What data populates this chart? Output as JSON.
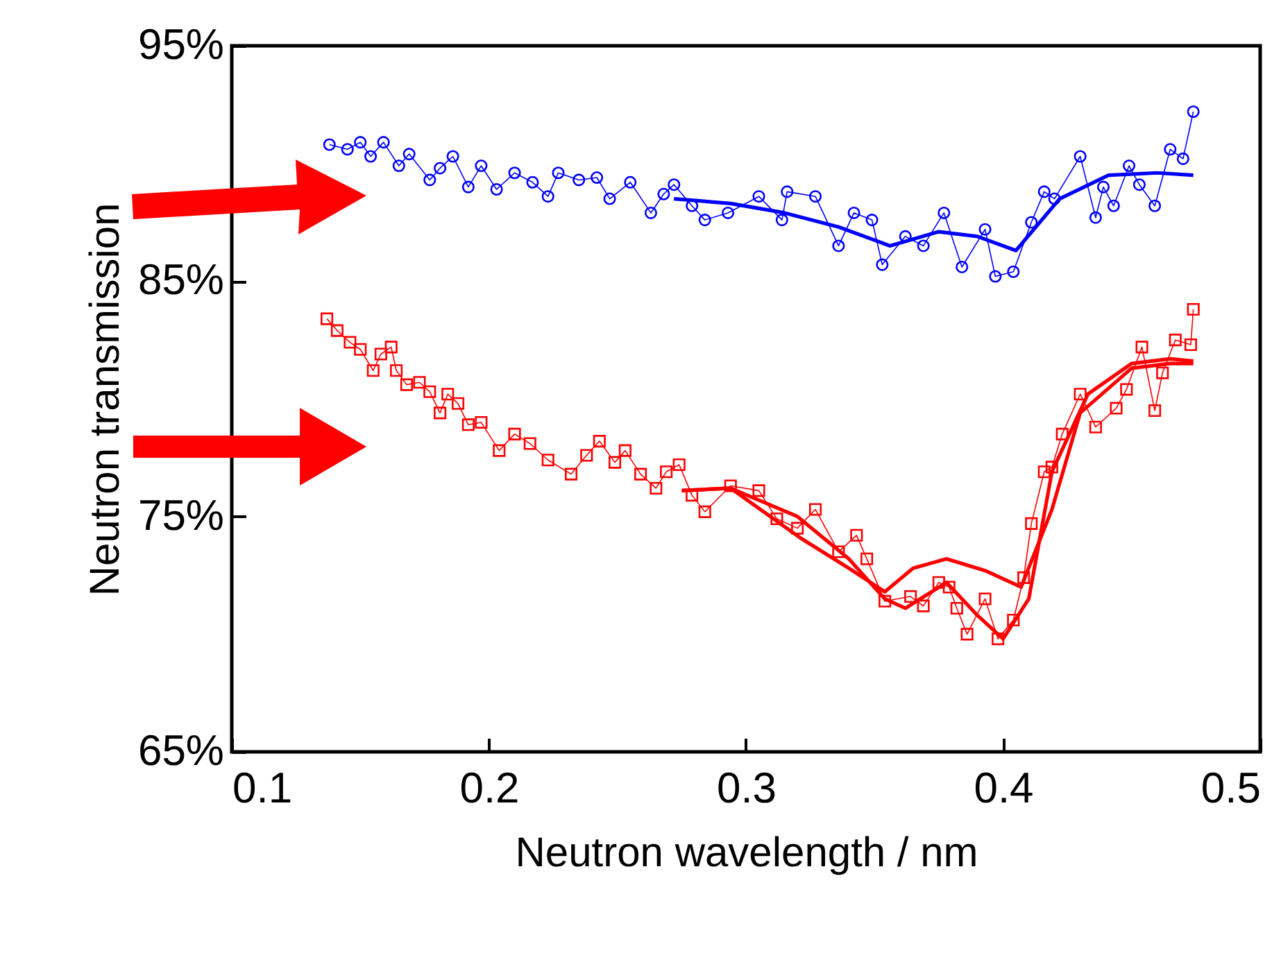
{
  "chart_data": {
    "type": "line",
    "xlabel": "Neutron wavelength / nm",
    "ylabel": "Neutron transmission",
    "xlim": [
      0.1,
      0.5
    ],
    "ylim": [
      65,
      95
    ],
    "xticks": [
      0.1,
      0.2,
      0.3,
      0.4,
      0.5
    ],
    "yticks": [
      {
        "value": 65,
        "label": "65%"
      },
      {
        "value": 75,
        "label": "75%"
      },
      {
        "value": 85,
        "label": "85%"
      },
      {
        "value": 95,
        "label": "95%"
      }
    ],
    "grid": false,
    "series": [
      {
        "marker": "circle",
        "color": "#0000ff",
        "x": [
          0.138,
          0.145,
          0.15,
          0.154,
          0.159,
          0.165,
          0.169,
          0.177,
          0.181,
          0.186,
          0.192,
          0.197,
          0.203,
          0.21,
          0.217,
          0.223,
          0.227,
          0.235,
          0.242,
          0.247,
          0.255,
          0.263,
          0.268,
          0.272,
          0.279,
          0.284,
          0.293,
          0.305,
          0.314,
          0.316,
          0.327,
          0.336,
          0.342,
          0.349,
          0.353,
          0.362,
          0.369,
          0.377,
          0.384,
          0.393,
          0.397,
          0.404,
          0.411,
          0.416,
          0.42,
          0.43,
          0.436,
          0.439,
          0.443,
          0.449,
          0.453,
          0.459,
          0.465,
          0.47,
          0.474
        ],
        "values": [
          90.8,
          90.6,
          90.9,
          90.3,
          90.9,
          89.9,
          90.4,
          89.3,
          89.8,
          90.3,
          89.0,
          89.9,
          88.9,
          89.6,
          89.2,
          88.6,
          89.6,
          89.3,
          89.4,
          88.5,
          89.2,
          87.9,
          88.7,
          89.1,
          88.2,
          87.6,
          87.9,
          88.6,
          87.6,
          88.8,
          88.6,
          86.5,
          87.9,
          87.6,
          85.7,
          86.9,
          86.5,
          87.9,
          85.6,
          87.2,
          85.2,
          85.4,
          87.5,
          88.8,
          88.5,
          90.3,
          87.7,
          89.0,
          88.2,
          89.9,
          89.1,
          88.2,
          90.6,
          90.2,
          92.2
        ]
      },
      {
        "marker": "none",
        "color": "#0000ff",
        "x": [
          0.272,
          0.294,
          0.315,
          0.336,
          0.356,
          0.375,
          0.39,
          0.405,
          0.422,
          0.441,
          0.46,
          0.474
        ],
        "values": [
          88.5,
          88.3,
          87.9,
          87.3,
          86.5,
          87.1,
          86.9,
          86.3,
          88.5,
          89.5,
          89.6,
          89.5
        ]
      },
      {
        "marker": "square",
        "color": "#ff0000",
        "x": [
          0.137,
          0.141,
          0.146,
          0.15,
          0.155,
          0.158,
          0.162,
          0.164,
          0.168,
          0.173,
          0.177,
          0.181,
          0.184,
          0.188,
          0.192,
          0.197,
          0.204,
          0.21,
          0.216,
          0.223,
          0.232,
          0.238,
          0.243,
          0.249,
          0.253,
          0.259,
          0.265,
          0.269,
          0.274,
          0.279,
          0.284,
          0.294,
          0.305,
          0.312,
          0.32,
          0.327,
          0.336,
          0.343,
          0.347,
          0.354,
          0.364,
          0.369,
          0.375,
          0.379,
          0.382,
          0.386,
          0.393,
          0.398,
          0.404,
          0.408,
          0.411,
          0.416,
          0.419,
          0.423,
          0.43,
          0.436,
          0.444,
          0.448,
          0.454,
          0.459,
          0.462,
          0.467,
          0.473,
          0.474
        ],
        "values": [
          83.4,
          82.9,
          82.4,
          82.1,
          81.2,
          81.9,
          82.2,
          81.2,
          80.6,
          80.7,
          80.3,
          79.4,
          80.2,
          79.8,
          78.9,
          79.0,
          77.8,
          78.5,
          78.1,
          77.4,
          76.8,
          77.6,
          78.2,
          77.3,
          77.8,
          76.8,
          76.2,
          76.9,
          77.2,
          75.9,
          75.2,
          76.3,
          76.1,
          74.9,
          74.5,
          75.3,
          73.5,
          74.2,
          73.2,
          71.4,
          71.6,
          71.2,
          72.2,
          72.0,
          71.1,
          70.0,
          71.5,
          69.8,
          70.6,
          72.4,
          74.7,
          76.9,
          77.1,
          78.5,
          80.2,
          78.8,
          79.6,
          80.4,
          82.2,
          79.5,
          81.1,
          82.5,
          82.3,
          83.8
        ]
      },
      {
        "marker": "none",
        "color": "#ff0000",
        "x": [
          0.275,
          0.294,
          0.32,
          0.34,
          0.354,
          0.362,
          0.378,
          0.39,
          0.4,
          0.41,
          0.419,
          0.433,
          0.45,
          0.465,
          0.474
        ],
        "values": [
          76.1,
          76.2,
          75.0,
          73.2,
          71.5,
          71.1,
          72.2,
          70.8,
          69.8,
          71.5,
          76.9,
          80.2,
          81.5,
          81.7,
          81.6
        ]
      },
      {
        "marker": "none",
        "color": "#ff0000",
        "x": [
          0.275,
          0.294,
          0.321,
          0.34,
          0.354,
          0.365,
          0.378,
          0.393,
          0.407,
          0.419,
          0.43,
          0.45,
          0.465,
          0.474
        ],
        "values": [
          76.1,
          76.2,
          74.1,
          72.8,
          71.8,
          72.8,
          73.2,
          72.7,
          72.0,
          75.3,
          79.4,
          81.3,
          81.5,
          81.5
        ]
      }
    ]
  }
}
